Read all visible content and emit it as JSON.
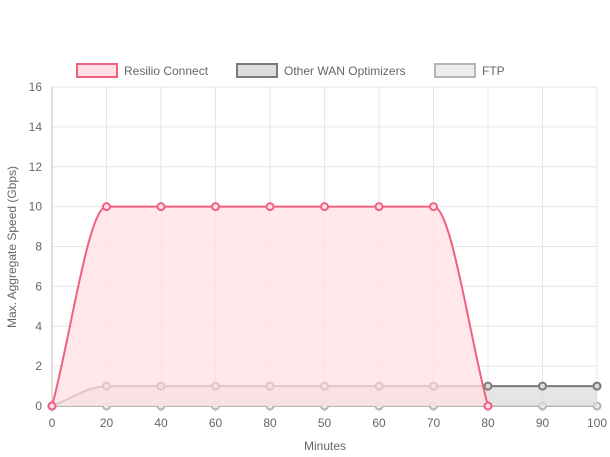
{
  "chart_data": {
    "type": "line",
    "title": "",
    "xlabel": "Minutes",
    "ylabel": "Max. Aggregate Speed (Gbps)",
    "x": [
      "0",
      "20",
      "40",
      "60",
      "80",
      "50",
      "60",
      "70",
      "80",
      "90",
      "100"
    ],
    "ylim": [
      0,
      16
    ],
    "yticks": [
      0,
      2,
      4,
      6,
      8,
      10,
      12,
      14,
      16
    ],
    "grid": true,
    "legend_position": "top",
    "series": [
      {
        "name": "Resilio Connect",
        "values": [
          0,
          10,
          10,
          10,
          10,
          10,
          10,
          10,
          0,
          null,
          null
        ],
        "color": "#f06080",
        "fill": "#ffdfe5"
      },
      {
        "name": "Other WAN Optimizers",
        "values": [
          0,
          1,
          1,
          1,
          1,
          1,
          1,
          1,
          1,
          1,
          1
        ],
        "color": "#7a7a7a",
        "fill": "#dcdcdc"
      },
      {
        "name": "FTP",
        "values": [
          0,
          0,
          0,
          0,
          0,
          0,
          0,
          0,
          0,
          0,
          0
        ],
        "color": "#b5b5b5",
        "fill": "#ececec"
      }
    ]
  }
}
